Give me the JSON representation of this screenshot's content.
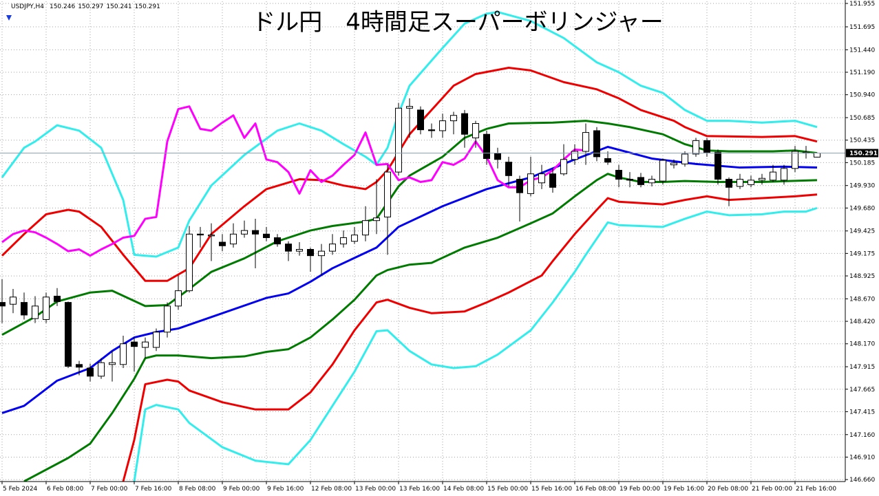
{
  "chart_data": {
    "type": "candlestick",
    "title": "ドル円　4時間足スーパーボリンジャー",
    "symbol": "USDJPY,H4",
    "grid": true,
    "xlim": [
      -0.1875,
      76.5625
    ],
    "ylim": [
      146.638,
      151.978
    ],
    "xticks": [
      {
        "value": 0,
        "label": "5 Feb 2024"
      },
      {
        "value": 4,
        "label": "6 Feb 08:00"
      },
      {
        "value": 8,
        "label": "7 Feb 00:00"
      },
      {
        "value": 12,
        "label": "7 Feb 16:00"
      },
      {
        "value": 16,
        "label": "8 Feb 08:00"
      },
      {
        "value": 20,
        "label": "9 Feb 00:00"
      },
      {
        "value": 24,
        "label": "9 Feb 16:00"
      },
      {
        "value": 28,
        "label": "12 Feb 08:00"
      },
      {
        "value": 32,
        "label": "13 Feb 00:00"
      },
      {
        "value": 36,
        "label": "13 Feb 16:00"
      },
      {
        "value": 40,
        "label": "14 Feb 08:00"
      },
      {
        "value": 44,
        "label": "15 Feb 00:00"
      },
      {
        "value": 48,
        "label": "15 Feb 16:00"
      },
      {
        "value": 52,
        "label": "16 Feb 08:00"
      },
      {
        "value": 56,
        "label": "19 Feb 00:00"
      },
      {
        "value": 60,
        "label": "19 Feb 16:00"
      },
      {
        "value": 64,
        "label": "20 Feb 08:00"
      },
      {
        "value": 68,
        "label": "21 Feb 00:00"
      },
      {
        "value": 72,
        "label": "21 Feb 16:00"
      }
    ],
    "yticks": [
      151.955,
      151.695,
      {
        "value": 151.44,
        "label": "151.440"
      },
      {
        "value": 151.19,
        "label": "151.190"
      },
      {
        "value": 150.94,
        "label": "150.940"
      },
      150.685,
      150.435,
      150.185,
      {
        "value": 149.93,
        "label": "149.930"
      },
      {
        "value": 149.68,
        "label": "149.680"
      },
      149.425,
      149.175,
      148.925,
      {
        "value": 148.67,
        "label": "148.670"
      },
      {
        "value": 148.42,
        "label": "148.420"
      },
      {
        "value": 148.17,
        "label": "148.170"
      },
      147.915,
      147.665,
      147.415,
      {
        "value": 147.16,
        "label": "147.160"
      },
      {
        "value": 146.91,
        "label": "146.910"
      },
      {
        "value": 146.66,
        "label": "146.660"
      }
    ],
    "candles": {
      "up_color": "#ffffff",
      "down_color": "#000000",
      "open": [
        148.63,
        148.61,
        148.63,
        148.45,
        148.44,
        148.7,
        148.63,
        147.94,
        147.9,
        147.81,
        147.94,
        147.94,
        148.19,
        148.13,
        148.13,
        148.3,
        148.59,
        148.76,
        149.39,
        149.37,
        149.3,
        149.28,
        149.39,
        149.43,
        149.39,
        149.35,
        149.28,
        149.2,
        149.22,
        149.15,
        149.2,
        149.28,
        149.31,
        149.38,
        149.54,
        149.58,
        150.08,
        150.79,
        150.77,
        150.55,
        150.54,
        150.65,
        150.73,
        150.46,
        150.5,
        150.29,
        150.19,
        150.0,
        149.84,
        149.96,
        150.06,
        150.06,
        150.22,
        150.31,
        150.54,
        150.23,
        150.1,
        150.0,
        150.02,
        149.96,
        149.98,
        150.16,
        150.17,
        150.28,
        150.43,
        150.3,
        150.0,
        149.92,
        149.94,
        149.99,
        149.99,
        149.99,
        150.12,
        150.29,
        150.246
      ],
      "high": [
        148.89,
        148.78,
        148.74,
        148.7,
        148.74,
        148.79,
        148.64,
        147.98,
        147.95,
        148.01,
        148.09,
        148.26,
        148.24,
        148.24,
        148.34,
        148.63,
        148.93,
        149.48,
        149.47,
        149.51,
        149.39,
        149.51,
        149.54,
        149.56,
        149.47,
        149.39,
        149.31,
        149.3,
        149.24,
        149.28,
        149.39,
        149.43,
        149.47,
        149.7,
        150.0,
        150.16,
        150.85,
        150.9,
        150.81,
        150.62,
        150.73,
        150.75,
        150.77,
        150.65,
        150.54,
        150.35,
        150.25,
        150.04,
        150.25,
        150.16,
        150.12,
        150.39,
        150.39,
        150.62,
        150.58,
        150.31,
        150.16,
        150.08,
        150.07,
        150.04,
        150.23,
        150.22,
        150.31,
        150.46,
        150.46,
        150.33,
        150.02,
        150.06,
        150.04,
        150.06,
        150.16,
        150.16,
        150.37,
        150.37,
        150.297
      ],
      "low": [
        148.4,
        148.51,
        148.44,
        148.4,
        148.4,
        148.59,
        147.9,
        147.82,
        147.75,
        147.78,
        147.75,
        147.9,
        147.86,
        148.01,
        148.09,
        148.24,
        148.55,
        148.74,
        149.24,
        149.09,
        149.2,
        149.24,
        149.35,
        149.01,
        149.31,
        149.25,
        149.09,
        149.15,
        148.97,
        148.93,
        149.16,
        149.24,
        149.28,
        149.31,
        149.39,
        149.16,
        150.04,
        150.46,
        150.5,
        150.46,
        150.46,
        150.5,
        150.35,
        150.35,
        150.16,
        150.12,
        149.92,
        149.53,
        149.81,
        149.89,
        149.85,
        150.04,
        150.16,
        150.16,
        150.2,
        150.16,
        149.91,
        149.91,
        149.91,
        149.92,
        149.94,
        150.12,
        150.14,
        150.25,
        150.25,
        149.94,
        149.7,
        149.89,
        149.91,
        149.94,
        149.97,
        149.94,
        150.08,
        150.23,
        150.241
      ],
      "close": [
        148.59,
        148.69,
        148.49,
        148.59,
        148.69,
        148.64,
        147.92,
        147.91,
        147.81,
        147.96,
        147.96,
        148.17,
        148.14,
        148.19,
        148.3,
        148.59,
        148.76,
        149.39,
        149.38,
        149.38,
        149.26,
        149.39,
        149.43,
        149.39,
        149.35,
        149.28,
        149.2,
        149.22,
        149.15,
        149.2,
        149.28,
        149.35,
        149.38,
        149.54,
        149.57,
        150.08,
        150.79,
        150.81,
        150.55,
        150.54,
        150.65,
        150.71,
        150.5,
        150.62,
        150.23,
        150.22,
        150.04,
        149.85,
        150.06,
        150.06,
        149.91,
        150.22,
        150.31,
        150.52,
        150.25,
        150.19,
        150.0,
        149.99,
        149.94,
        150.0,
        150.21,
        150.18,
        150.28,
        150.43,
        150.3,
        150.0,
        149.91,
        150.0,
        149.99,
        150.01,
        150.08,
        150.12,
        150.31,
        150.3,
        150.291
      ]
    },
    "series": [
      {
        "color": "#33eded",
        "x": [
          0,
          2,
          3,
          5,
          7,
          9,
          11,
          12,
          14,
          16,
          17,
          19,
          22,
          25,
          27,
          29,
          31,
          33,
          34,
          35,
          36,
          37,
          40,
          42,
          44,
          45,
          48,
          51,
          54,
          56,
          58,
          60,
          62,
          64,
          66,
          69,
          72,
          74
        ],
        "values": [
          150.02,
          150.35,
          150.42,
          150.6,
          150.54,
          150.35,
          149.77,
          149.16,
          149.14,
          149.24,
          149.54,
          149.93,
          150.27,
          150.54,
          150.62,
          150.54,
          150.39,
          150.25,
          150.16,
          150.35,
          150.73,
          151.04,
          151.46,
          151.73,
          151.84,
          151.86,
          151.76,
          151.57,
          151.3,
          151.19,
          151.04,
          150.96,
          150.77,
          150.65,
          150.65,
          150.63,
          150.65,
          150.58
        ]
      },
      {
        "color": "#ee0000",
        "x": [
          0,
          2,
          4,
          6,
          7,
          9,
          11,
          13,
          15,
          17,
          19,
          22,
          24,
          27,
          29,
          31,
          33,
          34,
          35,
          37,
          39,
          41,
          43,
          46,
          48,
          51,
          54,
          56,
          58,
          61,
          62,
          64,
          69,
          72,
          74
        ],
        "values": [
          149.15,
          149.39,
          149.61,
          149.66,
          149.64,
          149.47,
          149.16,
          148.87,
          148.87,
          149.01,
          149.39,
          149.7,
          149.89,
          150.0,
          149.99,
          149.93,
          149.89,
          149.97,
          150.1,
          150.5,
          150.77,
          151.04,
          151.17,
          151.24,
          151.21,
          151.08,
          151.0,
          150.9,
          150.77,
          150.65,
          150.58,
          150.48,
          150.47,
          150.48,
          150.42
        ]
      },
      {
        "color": "#007a00",
        "x": [
          0,
          3,
          5,
          8,
          10,
          13,
          15,
          17,
          19,
          22,
          25,
          28,
          30,
          33,
          34,
          36,
          37,
          40,
          42,
          44,
          46,
          50,
          53,
          55,
          57,
          60,
          62,
          64,
          66,
          70,
          72,
          74
        ],
        "values": [
          148.27,
          148.47,
          148.64,
          148.74,
          148.76,
          148.59,
          148.6,
          148.78,
          148.97,
          149.12,
          149.31,
          149.43,
          149.48,
          149.53,
          149.56,
          149.92,
          150.04,
          150.25,
          150.46,
          150.56,
          150.62,
          150.63,
          150.65,
          150.62,
          150.58,
          150.5,
          150.39,
          150.32,
          150.31,
          150.31,
          150.32,
          150.29
        ]
      },
      {
        "color": "#0000ee",
        "x": [
          0,
          2,
          5,
          8,
          10,
          12,
          14,
          16,
          20,
          24,
          26,
          28,
          30,
          34,
          36,
          40,
          44,
          48,
          52,
          55,
          59,
          63,
          67,
          71,
          74
        ],
        "values": [
          147.4,
          147.48,
          147.76,
          147.9,
          148.09,
          148.24,
          148.3,
          148.34,
          148.51,
          148.68,
          148.73,
          148.86,
          149.01,
          149.24,
          149.47,
          149.7,
          149.89,
          150.02,
          150.22,
          150.36,
          150.23,
          150.17,
          150.13,
          150.14,
          150.13
        ]
      },
      {
        "color": "#007a00",
        "x": [
          2,
          6,
          8,
          10,
          12,
          13,
          14,
          16,
          19,
          22,
          24,
          26,
          28,
          30,
          32,
          34,
          35,
          37,
          39,
          42,
          45,
          48,
          50,
          52,
          54,
          55,
          56,
          58,
          60,
          62,
          65,
          69,
          74
        ],
        "values": [
          146.64,
          146.9,
          147.06,
          147.4,
          147.78,
          148.01,
          148.04,
          148.04,
          148.01,
          148.03,
          148.08,
          148.11,
          148.24,
          148.44,
          148.66,
          148.93,
          148.99,
          149.05,
          149.07,
          149.24,
          149.35,
          149.51,
          149.62,
          149.81,
          149.99,
          150.06,
          150.02,
          149.97,
          149.97,
          149.98,
          149.97,
          149.97,
          149.99
        ]
      },
      {
        "color": "#ee0000",
        "x": [
          11,
          12,
          13,
          15,
          16,
          17,
          20,
          23,
          26,
          28,
          30,
          32,
          34,
          35,
          37,
          39,
          42,
          44,
          46,
          49,
          50,
          52,
          54,
          55,
          56,
          60,
          62,
          64,
          66,
          69,
          72,
          74
        ],
        "values": [
          146.64,
          147.1,
          147.72,
          147.77,
          147.75,
          147.65,
          147.52,
          147.44,
          147.44,
          147.63,
          147.94,
          148.32,
          148.63,
          148.66,
          148.57,
          148.51,
          148.53,
          148.63,
          148.74,
          148.93,
          149.09,
          149.39,
          149.66,
          149.79,
          149.75,
          149.72,
          149.77,
          149.81,
          149.77,
          149.79,
          149.81,
          149.83
        ]
      },
      {
        "color": "#33eded",
        "x": [
          12,
          13,
          14,
          16,
          17,
          20,
          23,
          26,
          28,
          30,
          32,
          34,
          35,
          37,
          39,
          41,
          43,
          45,
          48,
          50,
          52,
          53,
          55,
          56,
          60,
          62,
          64,
          66,
          69,
          71,
          73,
          74
        ],
        "values": [
          146.64,
          147.44,
          147.49,
          147.44,
          147.29,
          147.02,
          146.87,
          146.83,
          147.1,
          147.48,
          147.86,
          148.31,
          148.32,
          148.09,
          147.94,
          147.9,
          147.92,
          148.05,
          148.32,
          148.63,
          148.97,
          149.16,
          149.52,
          149.49,
          149.47,
          149.56,
          149.64,
          149.6,
          149.61,
          149.64,
          149.64,
          149.68
        ]
      },
      {
        "color": "#ff00ff",
        "x": [
          0,
          1,
          2,
          3,
          4,
          5,
          6,
          7,
          8,
          9,
          10,
          11,
          12,
          13,
          14,
          15,
          16,
          17,
          18,
          19,
          20,
          21,
          22,
          23,
          24,
          25,
          26,
          27,
          28,
          29,
          30,
          31,
          32,
          33,
          34,
          35,
          36,
          37,
          38,
          39,
          40,
          41,
          42,
          43,
          44,
          45,
          46,
          47,
          48,
          49,
          50,
          51,
          52,
          53
        ],
        "values": [
          149.3,
          149.39,
          149.43,
          149.41,
          149.35,
          149.28,
          149.2,
          149.22,
          149.15,
          149.22,
          149.28,
          149.35,
          149.37,
          149.56,
          149.58,
          150.42,
          150.78,
          150.81,
          150.56,
          150.54,
          150.63,
          150.71,
          150.46,
          150.62,
          150.22,
          150.19,
          150.08,
          149.84,
          150.1,
          149.97,
          150.04,
          150.16,
          150.27,
          150.52,
          150.16,
          150.17,
          149.99,
          150.02,
          149.97,
          149.99,
          150.19,
          150.16,
          150.23,
          150.42,
          150.25,
          149.99,
          149.91,
          149.91,
          149.99,
          150.02,
          150.1,
          150.22,
          150.33,
          150.32
        ]
      }
    ]
  }
}
